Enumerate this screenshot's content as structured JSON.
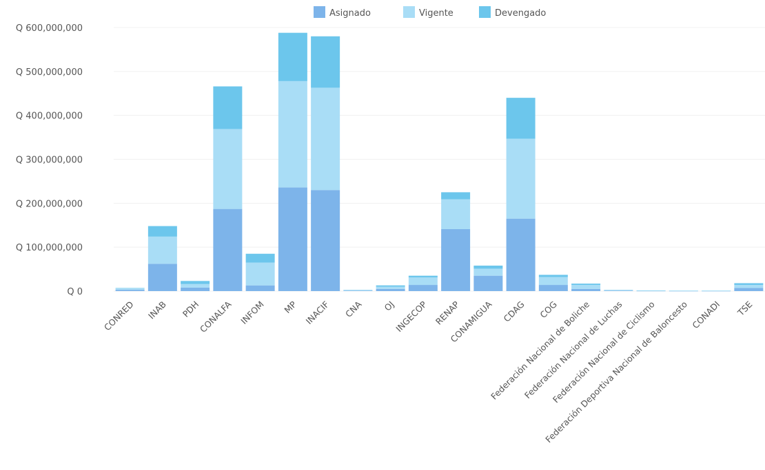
{
  "chart_data": {
    "type": "bar",
    "stacked": true,
    "categories": [
      "CONRED",
      "INAB",
      "PDH",
      "CONALFA",
      "INFOM",
      "MP",
      "INACIF",
      "CNA",
      "OJ",
      "INGECOP",
      "RENAP",
      "CONAMIGUA",
      "CDAG",
      "COG",
      "Federación Nacional de Boliche",
      "Federación Nacional de Luchas",
      "Federación Nacional de Ciclismo",
      "Federación Deportiva Nacional de Baloncesto",
      "CONADI",
      "TSE"
    ],
    "series": [
      {
        "name": "Asignado",
        "color": "#7db4ea",
        "values": [
          3000000,
          62000000,
          8000000,
          187000000,
          13000000,
          236000000,
          230000000,
          1000000,
          5000000,
          14000000,
          141000000,
          35000000,
          165000000,
          14000000,
          5000000,
          1000000,
          500000,
          300000,
          300000,
          7000000
        ]
      },
      {
        "name": "Vigente",
        "color": "#a9ddf6",
        "values": [
          3000000,
          62000000,
          8000000,
          182000000,
          52000000,
          242000000,
          233000000,
          1000000,
          5000000,
          17000000,
          68000000,
          16000000,
          182000000,
          18000000,
          9000000,
          1000000,
          500000,
          300000,
          300000,
          7000000
        ]
      },
      {
        "name": "Devengado",
        "color": "#6cc6ec",
        "values": [
          1000000,
          24000000,
          7000000,
          97000000,
          20000000,
          110000000,
          117000000,
          500000,
          3000000,
          4000000,
          16000000,
          7000000,
          93000000,
          5000000,
          3000000,
          500000,
          200000,
          200000,
          200000,
          4000000
        ]
      }
    ],
    "yticks": [
      "Q 0",
      "Q 100,000,000",
      "Q 200,000,000",
      "Q 300,000,000",
      "Q 400,000,000",
      "Q 500,000,000",
      "Q 600,000,000"
    ],
    "ylim": [
      0,
      600000000
    ],
    "grid": true,
    "legend": "top-center",
    "title": "",
    "xlabel": "",
    "ylabel": ""
  }
}
